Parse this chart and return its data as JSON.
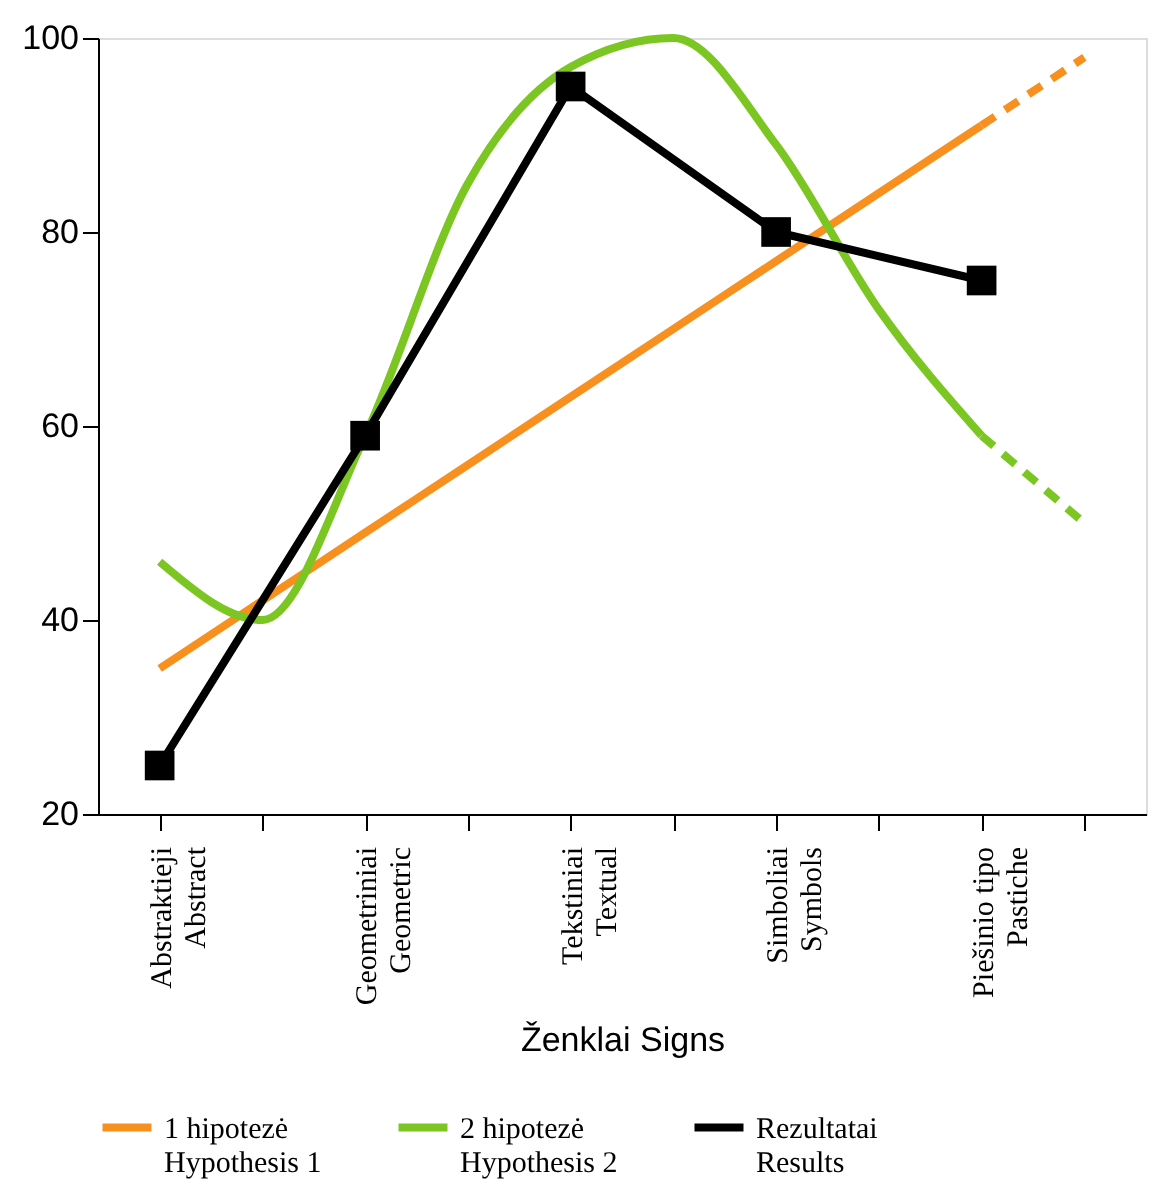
{
  "chart_data": {
    "type": "line",
    "xlabel": "Ženklai Signs",
    "categories": [
      "Abstraktieji\nAbstract",
      null,
      "Geometriniai\nGeometric",
      null,
      "Tekstiniai\nTextual",
      null,
      "Simboliai\nSymbols",
      null,
      "Piešinio tipo\nPastiche",
      null
    ],
    "ylim": [
      20,
      100
    ],
    "yticks": [
      20,
      40,
      60,
      80,
      100
    ],
    "legend": "bottom",
    "series": [
      {
        "name": "1 hipotezė\nHypothesis 1",
        "color": "#f7901e",
        "values": [
          35,
          42,
          49,
          56,
          63,
          70,
          77,
          84,
          91,
          null
        ],
        "line_style": "solid"
      },
      {
        "color": "#f7901e",
        "values": [
          null,
          null,
          null,
          null,
          null,
          null,
          null,
          null,
          91,
          98
        ],
        "line_style": "dashed"
      },
      {
        "name": "2 hipotezė\nHypothesis 2",
        "color": "#7cc623",
        "values": [
          46,
          40,
          59,
          85,
          97,
          100,
          89,
          72,
          59,
          null
        ],
        "line_style": "solid"
      },
      {
        "color": "#7cc623",
        "values": [
          null,
          null,
          null,
          null,
          null,
          null,
          null,
          null,
          59,
          50
        ],
        "line_style": "dashed"
      },
      {
        "name": "Rezultatai\nResults",
        "color": "#000000",
        "values": [
          25,
          null,
          59,
          null,
          95,
          null,
          80,
          null,
          75,
          null
        ],
        "marker": "square",
        "line_style": "solid"
      }
    ]
  }
}
